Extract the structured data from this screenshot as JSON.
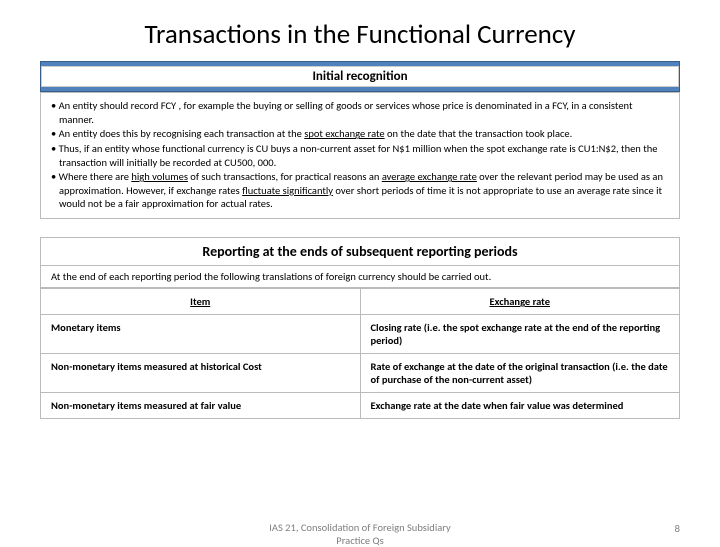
{
  "title": "Transactions in the Functional Currency",
  "banner1": "Initial recognition",
  "box_bullets": [
    "• An entity should record FCY , for example the buying or selling of goods or services whose price is denominated in a FCY, in a consistent manner.",
    "• An entity does this by recognising each transaction at the <u>spot exchange rate</u> on the date that the transaction took place.",
    "• Thus, if an entity whose functional currency is CU buys a non-current asset for N$1 million when the spot exchange rate is CU1:N$2, then the transaction will initially be recorded at CU500, 000.",
    "• Where there are <u>high volumes</u> of such transactions, for practical reasons an <u>average exchange rate</u> over the relevant period may be used as an  approximation. However, if exchange rates <u>fluctuate significantly</u> over short periods of time it is not appropriate to use an average rate since it would not be a fair approximation for actual rates."
  ],
  "subheader": "Reporting at the ends of subsequent reporting periods",
  "intro": "At the end of each reporting period the following translations of foreign currency should be carried out.",
  "table": {
    "headers": [
      "Item",
      "Exchange rate"
    ],
    "rows": [
      [
        "Monetary items",
        "Closing rate (i.e. the spot exchange rate at the end of the reporting period)"
      ],
      [
        "Non-monetary items measured at historical Cost",
        "Rate of exchange at the date of the original transaction (i.e. the date of purchase of the non-current asset)"
      ],
      [
        "Non-monetary items measured at fair value",
        "Exchange rate at the date when fair value was determined"
      ]
    ]
  },
  "footer_center_line1": "IAS 21, Consolidation of Foreign Subsidiary",
  "footer_center_line2": "Practice Qs",
  "page_number": "8",
  "colors": {
    "banner_bg": "#4f81bd",
    "banner_border": "#385d8a",
    "text": "#000000",
    "footer_text": "#7f7f7f",
    "border": "#bbbbbb"
  }
}
